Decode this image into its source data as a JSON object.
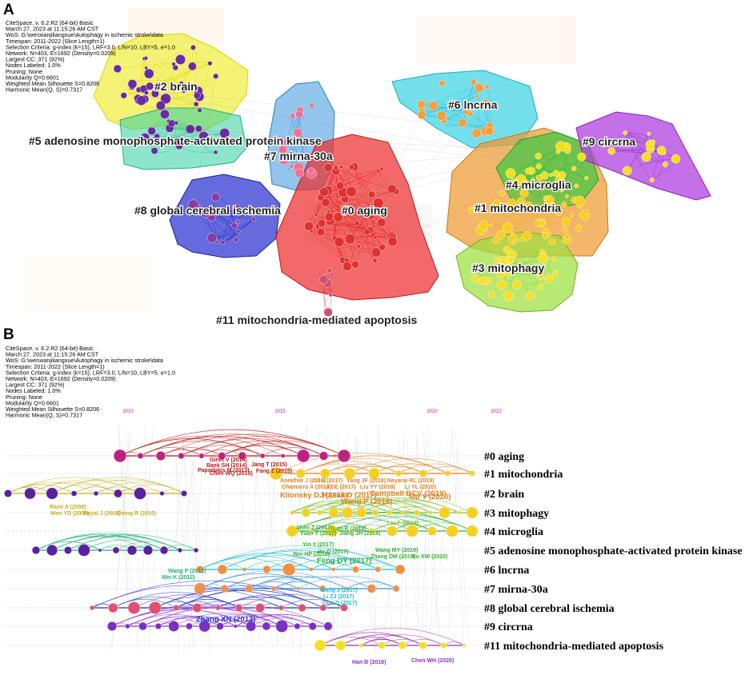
{
  "figure": {
    "panel_a_label": "A",
    "panel_b_label": "B"
  },
  "meta_lines": [
    "CiteSpace, v. 6.2.R2 (64-bit) Basic",
    "March 27, 2023 at 11:15:26 AM CST",
    "WoS: G:\\wenxianjiliangxue\\Autophagy in ischemic stroke\\data",
    "Timespan: 2011-2022 (Slice Length=1)",
    "Selection Criteria: g-index (k=15), LRF=3.0, L/N=10, LBY=5, e=1.0",
    "Network: N=403, E=1692 (Density=0.0209)",
    "Largest CC: 371 (92%)",
    "Nodes Labeled: 1.0%",
    "Pruning: None",
    "Modularity Q=0.6601",
    "Weighted Mean Silhouette S=0.8206",
    "Harmonic Mean(Q, S)=0.7317"
  ],
  "colors": {
    "c0": "#ee2a2a",
    "c1": "#f09a30",
    "c2": "#f0ee40",
    "c3": "#9ee040",
    "c4": "#30c840",
    "c5": "#30d0a0",
    "c6": "#30d0e0",
    "c7": "#4aa0e0",
    "c8": "#2a30d0",
    "c9": "#b040e0",
    "c11": "#c04090",
    "year_label": "#cc00cc"
  },
  "chart_data": [
    {
      "type": "network",
      "panel": "A",
      "clusters": [
        {
          "id": 0,
          "label": "#0 aging",
          "color": "#ee2a2a"
        },
        {
          "id": 1,
          "label": "#1 mitochondria",
          "color": "#f09a30"
        },
        {
          "id": 2,
          "label": "#2 brain",
          "color": "#f0ee40"
        },
        {
          "id": 3,
          "label": "#3 mitophagy",
          "color": "#9ee040"
        },
        {
          "id": 4,
          "label": "#4 microglia",
          "color": "#30c840"
        },
        {
          "id": 5,
          "label": "#5 adenosine monophosphate-activated protein kinase",
          "color": "#30d0a0"
        },
        {
          "id": 6,
          "label": "#6 lncrna",
          "color": "#30d0e0"
        },
        {
          "id": 7,
          "label": "#7 mirna-30a",
          "color": "#4aa0e0"
        },
        {
          "id": 8,
          "label": "#8 global cerebral ischemia",
          "color": "#2a30d0"
        },
        {
          "id": 9,
          "label": "#9 circrna",
          "color": "#b040e0"
        },
        {
          "id": 11,
          "label": "#11 mitochondria-mediated apoptosis",
          "color": "#c04090"
        }
      ]
    },
    {
      "type": "timeline",
      "panel": "B",
      "xlim": [
        2010,
        2022
      ],
      "year_ticks": [
        2010,
        2015,
        2020,
        2022
      ],
      "rows": [
        {
          "id": 0,
          "label": "#0 aging",
          "color": "#c01818",
          "start": 2011,
          "end": 2017
        },
        {
          "id": 1,
          "label": "#1 mitochondria",
          "color": "#e08020",
          "start": 2012,
          "end": 2022
        },
        {
          "id": 2,
          "label": "#2 brain",
          "color": "#c0b020",
          "start": 2010,
          "end": 2014
        },
        {
          "id": 3,
          "label": "#3 mitophagy",
          "color": "#80c030",
          "start": 2015,
          "end": 2022
        },
        {
          "id": 4,
          "label": "#4 microglia",
          "color": "#30b030",
          "start": 2015,
          "end": 2022
        },
        {
          "id": 5,
          "label": "#5 adenosine monophosphate-activated protein kinase",
          "color": "#20b080",
          "start": 2010,
          "end": 2014
        },
        {
          "id": 6,
          "label": "#6 lncrna",
          "color": "#20b8d0",
          "start": 2013,
          "end": 2019
        },
        {
          "id": 7,
          "label": "#7 mirna-30a",
          "color": "#3a90d8",
          "start": 2011,
          "end": 2017
        },
        {
          "id": 8,
          "label": "#8 global cerebral ischemia",
          "color": "#2030c0",
          "start": 2011,
          "end": 2016
        },
        {
          "id": 9,
          "label": "#9 circrna",
          "color": "#8a30d0",
          "start": 2015,
          "end": 2021
        },
        {
          "id": 11,
          "label": "#11 mitochondria-mediated apoptosis",
          "color": "#9a30a0",
          "start": 2016,
          "end": 2022
        }
      ],
      "author_labels": [
        {
          "text": "Ginet V (2014)",
          "color": "#c01818",
          "row": 0,
          "year": 2014.0
        },
        {
          "text": "Baek SH (2014)",
          "color": "#c01818",
          "row": 0,
          "year": 2014.1
        },
        {
          "text": "Jang T (2015)",
          "color": "#c01818",
          "row": 0,
          "year": 2015.1
        },
        {
          "text": "Papadakis M (2013)",
          "color": "#c01818",
          "row": 0,
          "year": 2012.8
        },
        {
          "text": "Fang Z (2015)",
          "color": "#c01818",
          "row": 0,
          "year": 2015.2
        },
        {
          "text": "Chen WQ (2015)",
          "color": "#c01818",
          "row": 0,
          "year": 2014.4
        },
        {
          "text": "Anrather J (2016)",
          "color": "#e08020",
          "row": 1,
          "year": 2016.0
        },
        {
          "text": "Li C (2017)",
          "color": "#e08020",
          "row": 1,
          "year": 2016.9
        },
        {
          "text": "Yang JF (2018)",
          "color": "#e08020",
          "row": 1,
          "year": 2017.8
        },
        {
          "text": "Nayarai RL (2019)",
          "color": "#e08020",
          "row": 1,
          "year": 2019.0
        },
        {
          "text": "Chamorro A (2016)",
          "color": "#e08020",
          "row": 1,
          "year": 2016.1
        },
        {
          "text": "Li SE (2017)",
          "color": "#e08020",
          "row": 1,
          "year": 2017.2
        },
        {
          "text": "Liu YY (2018)",
          "color": "#e08020",
          "row": 1,
          "year": 2018.2
        },
        {
          "text": "Li YL (2020)",
          "color": "#e08020",
          "row": 1,
          "year": 2019.9
        },
        {
          "text": "Klionsky DJ (2016)",
          "color": "#e08020",
          "row": 1,
          "year": 2016.0
        },
        {
          "text": "Kasak D (2017)",
          "color": "#e08020",
          "row": 1,
          "year": 2017.1
        },
        {
          "text": "Campbell BCV (2019)",
          "color": "#e08020",
          "row": 1,
          "year": 2018.9
        },
        {
          "text": "Wang P (2018)",
          "color": "#e08020",
          "row": 1,
          "year": 2018.0
        },
        {
          "text": "Mo Y (2020)",
          "color": "#e08020",
          "row": 1,
          "year": 2020.0
        },
        {
          "text": "Rami A (2008)",
          "color": "#c0b020",
          "row": 2,
          "year": 2010.0
        },
        {
          "text": "Wen YD (2008)",
          "color": "#c0b020",
          "row": 2,
          "year": 2010.0
        },
        {
          "text": "Puyal J (2009)",
          "color": "#c0b020",
          "row": 2,
          "year": 2010.8
        },
        {
          "text": "Zheng R (2010)",
          "color": "#c0b020",
          "row": 2,
          "year": 2011.4
        },
        {
          "text": "Liu F (2018)",
          "color": "#80c030",
          "row": 3,
          "year": 2017.3
        },
        {
          "text": "Shen Z (2017)",
          "color": "#30b030",
          "row": 4,
          "year": 2016.5
        },
        {
          "text": "Lan R (2018)",
          "color": "#30b030",
          "row": 4,
          "year": 2017.5
        },
        {
          "text": "Yuan Y (2017)",
          "color": "#30b030",
          "row": 4,
          "year": 2016.5
        },
        {
          "text": "Jiang JH (2019)",
          "color": "#30b030",
          "row": 4,
          "year": 2017.6
        },
        {
          "text": "Yin Y (2017)",
          "color": "#30b030",
          "row": 4,
          "year": 2016.2
        },
        {
          "text": "He Q (2017)",
          "color": "#30b030",
          "row": 4,
          "year": 2016.6
        },
        {
          "text": "Wei HP (2016)",
          "color": "#30b030",
          "row": 4,
          "year": 2015.9
        },
        {
          "text": "Feng DY (2017)",
          "color": "#30b030",
          "row": 4,
          "year": 2016.6
        },
        {
          "text": "Wang MY (2019)",
          "color": "#30b030",
          "row": 4,
          "year": 2019.0
        },
        {
          "text": "Zhang DM (2019)",
          "color": "#30b030",
          "row": 4,
          "year": 2019.0
        },
        {
          "text": "Xu XW (2020)",
          "color": "#30b030",
          "row": 4,
          "year": 2020.1
        },
        {
          "text": "Wang P (2012)",
          "color": "#20b080",
          "row": 5,
          "year": 2012.4
        },
        {
          "text": "Wei K (2012)",
          "color": "#20b080",
          "row": 5,
          "year": 2012.4
        },
        {
          "text": "Wang J (2017)",
          "color": "#20b8d0",
          "row": 6,
          "year": 2016.3
        },
        {
          "text": "Li ZJ (2017)",
          "color": "#20b8d0",
          "row": 6,
          "year": 2016.5
        },
        {
          "text": "Guo D (2017)",
          "color": "#20b8d0",
          "row": 6,
          "year": 2016.5
        },
        {
          "text": "Zhang XN (2013)",
          "color": "#2030c0",
          "row": 8,
          "year": 2012.9
        },
        {
          "text": "Han B (2018)",
          "color": "#8a30d0",
          "row": 11,
          "year": 2018.0
        },
        {
          "text": "Chen WH (2020)",
          "color": "#8a30d0",
          "row": 11,
          "year": 2020.0
        }
      ]
    }
  ]
}
